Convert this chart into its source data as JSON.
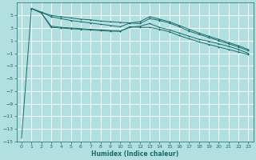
{
  "xlabel": "Humidex (Indice chaleur)",
  "bg_color": "#b2e0e0",
  "grid_color": "#ffffff",
  "line_color": "#1a6b6b",
  "xlim": [
    -0.5,
    23.5
  ],
  "ylim": [
    -15,
    7
  ],
  "yticks": [
    5,
    3,
    1,
    -1,
    -3,
    -5,
    -7,
    -9,
    -11,
    -13,
    -15
  ],
  "xticks": [
    0,
    1,
    2,
    3,
    4,
    5,
    6,
    7,
    8,
    9,
    10,
    11,
    12,
    13,
    14,
    15,
    16,
    17,
    18,
    19,
    20,
    21,
    22,
    23
  ],
  "series": {
    "line1_x": [
      0,
      1,
      2,
      3,
      4,
      5,
      6,
      7,
      8,
      9,
      10,
      11,
      12,
      13,
      14,
      15,
      16,
      17,
      18,
      19,
      20,
      21,
      22,
      23
    ],
    "line1_y": [
      -14.5,
      6.1,
      5.5,
      5.0,
      4.8,
      4.6,
      4.4,
      4.3,
      4.1,
      4.0,
      3.9,
      3.8,
      3.7,
      4.5,
      4.2,
      3.8,
      3.2,
      2.5,
      2.0,
      1.5,
      1.0,
      0.5,
      0.0,
      -0.6
    ],
    "line2_x": [
      1,
      2,
      3,
      4,
      5,
      6,
      7,
      8,
      9,
      10,
      11,
      12,
      13,
      14,
      15,
      16,
      17,
      18,
      19,
      20,
      21,
      22,
      23
    ],
    "line2_y": [
      6.1,
      5.4,
      3.1,
      3.0,
      2.9,
      2.8,
      2.7,
      2.6,
      2.5,
      2.5,
      3.2,
      3.1,
      3.1,
      2.8,
      2.4,
      1.8,
      1.3,
      0.8,
      0.4,
      0.0,
      -0.4,
      -0.8,
      -1.2
    ],
    "line3_x": [
      1,
      2,
      3,
      4,
      5,
      6,
      7,
      8,
      9,
      10,
      11,
      12,
      13,
      14,
      15,
      16,
      17,
      18,
      19,
      20,
      21,
      22,
      23
    ],
    "line3_y": [
      6.1,
      5.5,
      4.8,
      4.5,
      4.2,
      4.0,
      3.8,
      3.6,
      3.4,
      3.2,
      3.8,
      4.0,
      4.8,
      4.4,
      4.0,
      3.4,
      2.8,
      2.2,
      1.7,
      1.2,
      0.7,
      0.2,
      -0.4
    ],
    "line4_x": [
      1,
      2,
      3,
      4,
      5,
      6,
      7,
      8,
      9,
      10,
      11,
      12,
      13,
      14,
      15,
      16,
      17,
      18,
      19,
      20,
      21,
      22,
      23
    ],
    "line4_y": [
      6.1,
      5.4,
      3.3,
      3.1,
      3.0,
      2.9,
      2.8,
      2.7,
      2.6,
      2.5,
      3.1,
      3.3,
      3.7,
      3.1,
      2.7,
      2.2,
      1.7,
      1.2,
      0.9,
      0.5,
      0.1,
      -0.4,
      -1.0
    ]
  }
}
